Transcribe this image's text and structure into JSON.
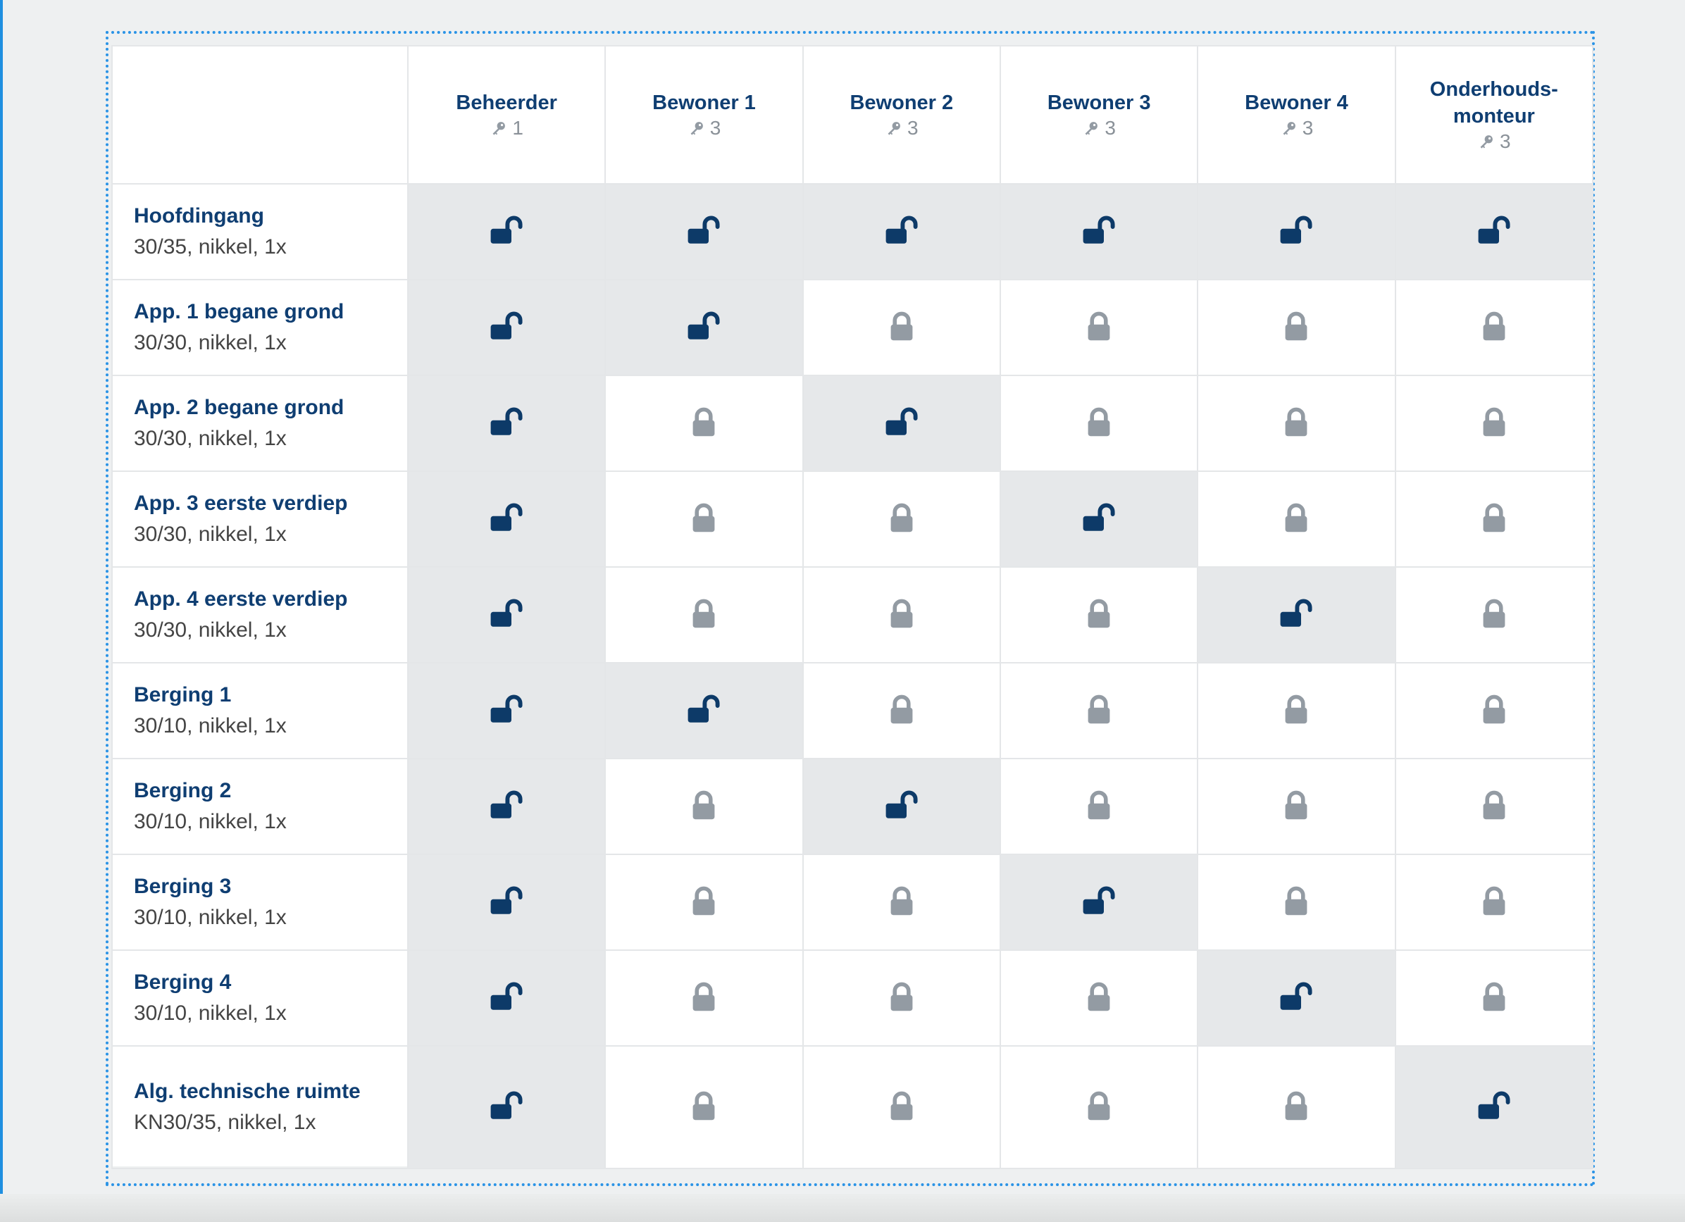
{
  "colors": {
    "unlocked": "#0d3a68",
    "locked": "#939ba3",
    "access_bg": "#e6e8ea",
    "text_primary": "#0f3e72",
    "text_secondary": "#444444",
    "frame_border": "#2a93e6"
  },
  "icons": {
    "key": "key-icon",
    "unlocked": "lock-open-icon",
    "locked": "lock-closed-icon"
  },
  "columns": [
    {
      "name": "Beheerder",
      "keys": "1"
    },
    {
      "name": "Bewoner 1",
      "keys": "3"
    },
    {
      "name": "Bewoner 2",
      "keys": "3"
    },
    {
      "name": "Bewoner 3",
      "keys": "3"
    },
    {
      "name": "Bewoner 4",
      "keys": "3"
    },
    {
      "name": "Onderhouds-\nmonteur",
      "keys": "3"
    }
  ],
  "rows": [
    {
      "name": "Hoofdingang",
      "spec": "30/35, nikkel, 1x",
      "access": [
        true,
        true,
        true,
        true,
        true,
        true
      ]
    },
    {
      "name": "App. 1 begane grond",
      "spec": "30/30, nikkel, 1x",
      "access": [
        true,
        true,
        false,
        false,
        false,
        false
      ]
    },
    {
      "name": "App. 2 begane grond",
      "spec": "30/30, nikkel, 1x",
      "access": [
        true,
        false,
        true,
        false,
        false,
        false
      ]
    },
    {
      "name": "App. 3 eerste verdiep",
      "spec": "30/30, nikkel, 1x",
      "access": [
        true,
        false,
        false,
        true,
        false,
        false
      ]
    },
    {
      "name": "App. 4 eerste verdiep",
      "spec": "30/30, nikkel, 1x",
      "access": [
        true,
        false,
        false,
        false,
        true,
        false
      ]
    },
    {
      "name": "Berging 1",
      "spec": "30/10, nikkel, 1x",
      "access": [
        true,
        true,
        false,
        false,
        false,
        false
      ]
    },
    {
      "name": "Berging 2",
      "spec": "30/10, nikkel, 1x",
      "access": [
        true,
        false,
        true,
        false,
        false,
        false
      ]
    },
    {
      "name": "Berging 3",
      "spec": "30/10, nikkel, 1x",
      "access": [
        true,
        false,
        false,
        true,
        false,
        false
      ]
    },
    {
      "name": "Berging 4",
      "spec": "30/10, nikkel, 1x",
      "access": [
        true,
        false,
        false,
        false,
        true,
        false
      ]
    },
    {
      "name": "Alg. technische ruimte",
      "spec": "KN30/35, nikkel, 1x",
      "access": [
        true,
        false,
        false,
        false,
        false,
        true
      ]
    }
  ]
}
